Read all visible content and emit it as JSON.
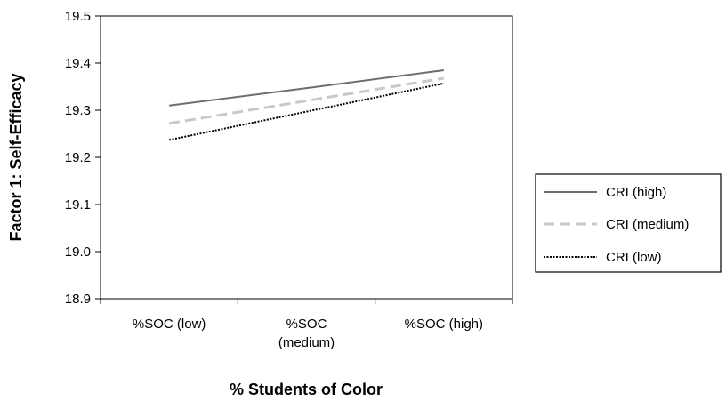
{
  "chart_data": {
    "type": "line",
    "xlabel": "% Students of Color",
    "ylabel": "Factor 1: Self-Efficacy",
    "categories": [
      [
        "%SOC (low)"
      ],
      [
        "%SOC",
        "(medium)"
      ],
      [
        "%SOC (high)"
      ]
    ],
    "ylim": [
      18.9,
      19.5
    ],
    "yticks": [
      "19.5",
      "19.4",
      "19.3",
      "19.2",
      "19.1",
      "19.0",
      "18.9"
    ],
    "grid": false,
    "legend_position": "right",
    "series": [
      {
        "name": "CRI (high)",
        "values": [
          19.31,
          19.347,
          19.385
        ],
        "color": "#6e6e6e",
        "dash": "solid"
      },
      {
        "name": "CRI (medium)",
        "values": [
          19.272,
          19.32,
          19.368
        ],
        "color": "#c8c8c8",
        "dash": "dashed"
      },
      {
        "name": "CRI (low)",
        "values": [
          19.237,
          19.297,
          19.357
        ],
        "color": "#000000",
        "dash": "dotted"
      }
    ]
  }
}
